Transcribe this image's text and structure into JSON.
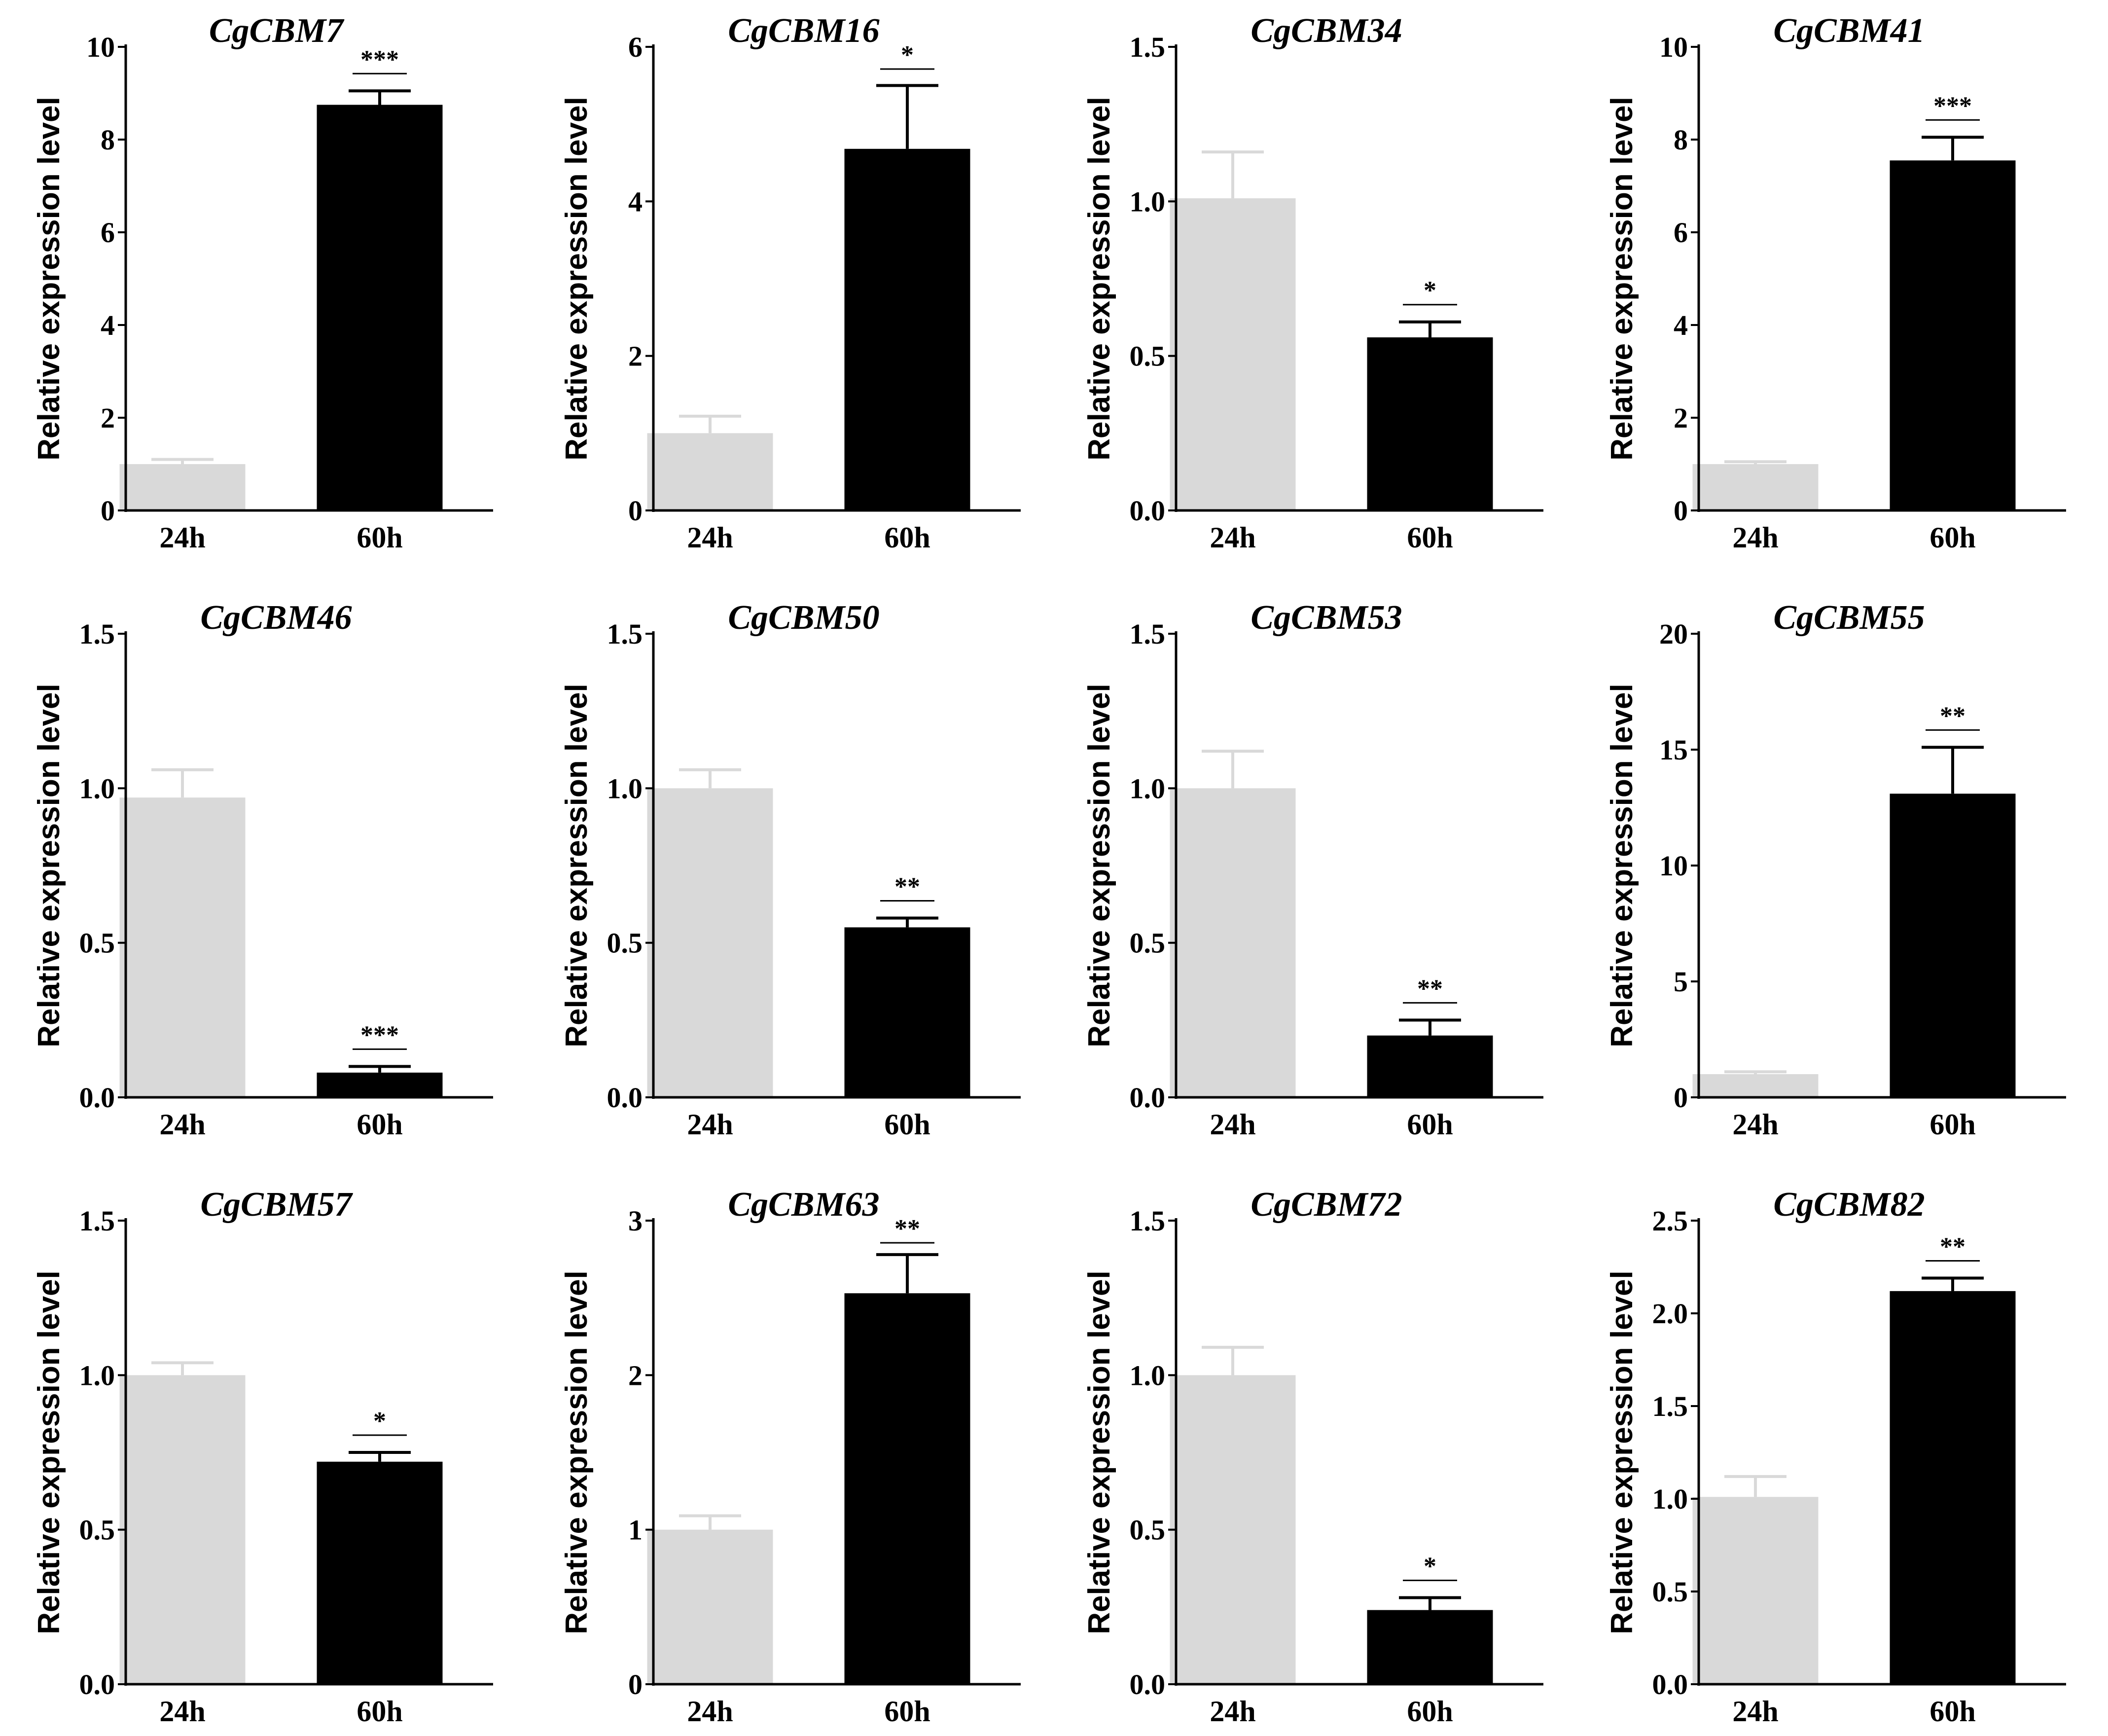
{
  "colors": {
    "control_bar": "#d9d9d9",
    "treatment_bar": "#000000",
    "axis": "#000000"
  },
  "chart_data": [
    {
      "type": "bar",
      "title": "CgCBM7",
      "ylabel": "Relative expression level",
      "xlabel": "",
      "categories": [
        "24h",
        "60h"
      ],
      "values": [
        1.0,
        8.75
      ],
      "errors": [
        0.1,
        0.3
      ],
      "ylim": [
        0,
        10
      ],
      "yticks": [
        "0",
        "2",
        "4",
        "6",
        "8",
        "10"
      ],
      "yticks_display": [
        "0",
        "2",
        "4",
        "6",
        "8",
        "10"
      ],
      "significance": "***"
    },
    {
      "type": "bar",
      "title": "CgCBM16",
      "ylabel": "Relative expression level",
      "xlabel": "",
      "categories": [
        "24h",
        "60h"
      ],
      "values": [
        1.0,
        4.68
      ],
      "errors": [
        0.22,
        0.82
      ],
      "ylim": [
        0,
        6
      ],
      "yticks": [
        "0",
        "2",
        "4",
        "6"
      ],
      "yticks_display": [
        "0",
        "2",
        "4",
        "6"
      ],
      "significance": "*"
    },
    {
      "type": "bar",
      "title": "CgCBM34",
      "ylabel": "Relative expression level",
      "xlabel": "",
      "categories": [
        "24h",
        "60h"
      ],
      "values": [
        1.01,
        0.56
      ],
      "errors": [
        0.15,
        0.05
      ],
      "ylim": [
        0,
        1.5
      ],
      "yticks": [
        "0.0",
        "0.5",
        "1.0",
        "1.5"
      ],
      "yticks_display": [
        "0.0",
        "0.5",
        "1.0",
        "1.5"
      ],
      "significance": "*"
    },
    {
      "type": "bar",
      "title": "CgCBM41",
      "ylabel": "Relative expression level",
      "xlabel": "",
      "categories": [
        "24h",
        "60h"
      ],
      "values": [
        1.0,
        7.55
      ],
      "errors": [
        0.05,
        0.5
      ],
      "ylim": [
        0,
        10
      ],
      "yticks": [
        "0",
        "2",
        "4",
        "6",
        "8",
        "10"
      ],
      "yticks_display": [
        "0",
        "2",
        "4",
        "6",
        "8",
        "10"
      ],
      "significance": "***"
    },
    {
      "type": "bar",
      "title": "CgCBM46",
      "ylabel": "Relative expression level",
      "xlabel": "",
      "categories": [
        "24h",
        "60h"
      ],
      "values": [
        0.97,
        0.08
      ],
      "errors": [
        0.09,
        0.02
      ],
      "ylim": [
        0,
        1.5
      ],
      "yticks": [
        "0.0",
        "0.5",
        "1.0",
        "1.5"
      ],
      "yticks_display": [
        "0.0",
        "0.5",
        "1.0",
        "1.5"
      ],
      "significance": "***"
    },
    {
      "type": "bar",
      "title": "CgCBM50",
      "ylabel": "Relative expression level",
      "xlabel": "",
      "categories": [
        "24h",
        "60h"
      ],
      "values": [
        1.0,
        0.55
      ],
      "errors": [
        0.06,
        0.03
      ],
      "ylim": [
        0,
        1.5
      ],
      "yticks": [
        "0.0",
        "0.5",
        "1.0",
        "1.5"
      ],
      "yticks_display": [
        "0.0",
        "0.5",
        "1.0",
        "1.5"
      ],
      "significance": "**"
    },
    {
      "type": "bar",
      "title": "CgCBM53",
      "ylabel": "Relative expression level",
      "xlabel": "",
      "categories": [
        "24h",
        "60h"
      ],
      "values": [
        1.0,
        0.2
      ],
      "errors": [
        0.12,
        0.05
      ],
      "ylim": [
        0,
        1.5
      ],
      "yticks": [
        "0.0",
        "0.5",
        "1.0",
        "1.5"
      ],
      "yticks_display": [
        "0.0",
        "0.5",
        "1.0",
        "1.5"
      ],
      "significance": "**"
    },
    {
      "type": "bar",
      "title": "CgCBM55",
      "ylabel": "Relative expression level",
      "xlabel": "",
      "categories": [
        "24h",
        "60h"
      ],
      "values": [
        1.0,
        13.1
      ],
      "errors": [
        0.1,
        2.0
      ],
      "ylim": [
        0,
        20
      ],
      "yticks": [
        "0",
        "5",
        "10",
        "15",
        "20"
      ],
      "yticks_display": [
        "0",
        "5",
        "10",
        "15",
        "20"
      ],
      "significance": "**"
    },
    {
      "type": "bar",
      "title": "CgCBM57",
      "ylabel": "Relative expression level",
      "xlabel": "",
      "categories": [
        "24h",
        "60h"
      ],
      "values": [
        1.0,
        0.72
      ],
      "errors": [
        0.04,
        0.03
      ],
      "ylim": [
        0,
        1.5
      ],
      "yticks": [
        "0.0",
        "0.5",
        "1.0",
        "1.5"
      ],
      "yticks_display": [
        "0.0",
        "0.5",
        "1.0",
        "1.5"
      ],
      "significance": "*"
    },
    {
      "type": "bar",
      "title": "CgCBM63",
      "ylabel": "Relative expression level",
      "xlabel": "",
      "categories": [
        "24h",
        "60h"
      ],
      "values": [
        1.0,
        2.53
      ],
      "errors": [
        0.09,
        0.25
      ],
      "ylim": [
        0,
        3
      ],
      "yticks": [
        "0",
        "1",
        "2",
        "3"
      ],
      "yticks_display": [
        "0",
        "1",
        "2",
        "3"
      ],
      "significance": "**"
    },
    {
      "type": "bar",
      "title": "CgCBM72",
      "ylabel": "Relative expression level",
      "xlabel": "",
      "categories": [
        "24h",
        "60h"
      ],
      "values": [
        1.0,
        0.24
      ],
      "errors": [
        0.09,
        0.04
      ],
      "ylim": [
        0,
        1.5
      ],
      "yticks": [
        "0.0",
        "0.5",
        "1.0",
        "1.5"
      ],
      "yticks_display": [
        "0.0",
        "0.5",
        "1.0",
        "1.5"
      ],
      "significance": "*"
    },
    {
      "type": "bar",
      "title": "CgCBM82",
      "ylabel": "Relative expression level",
      "xlabel": "",
      "categories": [
        "24h",
        "60h"
      ],
      "values": [
        1.01,
        2.12
      ],
      "errors": [
        0.11,
        0.07
      ],
      "ylim": [
        0,
        2.5
      ],
      "yticks": [
        "0.0",
        "0.5",
        "1.0",
        "1.5",
        "2.0",
        "2.5"
      ],
      "yticks_display": [
        "0.0",
        "0.5",
        "1.0",
        "1.5",
        "2.0",
        "2.5"
      ],
      "significance": "**"
    }
  ]
}
